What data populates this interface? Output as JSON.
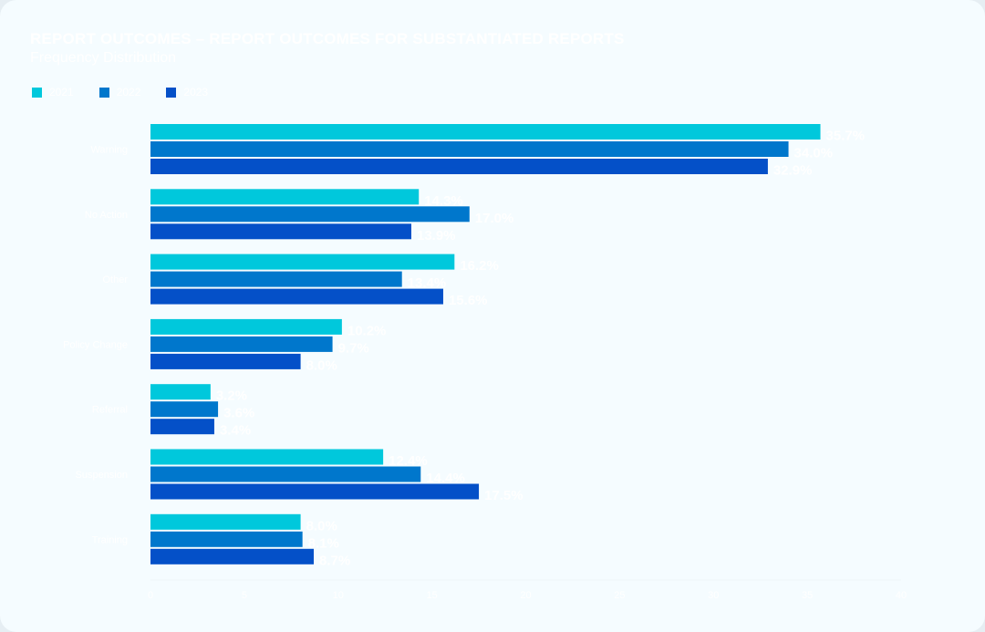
{
  "header": {
    "title": "REPORT OUTCOMES – REPORT OUTCOMES FOR SUBSTANTIATED REPORTS",
    "subtitle": "Frequency Distribution"
  },
  "colors": {
    "background": "#f5fcff",
    "series_2021": "#00c8dc",
    "series_2022": "#0077cc",
    "series_2023": "#0450c8"
  },
  "chart_data": {
    "type": "bar",
    "orientation": "horizontal",
    "title": "REPORT OUTCOMES – REPORT OUTCOMES FOR SUBSTANTIATED REPORTS",
    "subtitle": "Frequency Distribution",
    "categories": [
      "Warning",
      "No Action",
      "Other",
      "Policy Change",
      "Referral",
      "Suspension",
      "Training"
    ],
    "series": [
      {
        "name": "2021",
        "color": "#00c8dc",
        "values": [
          35.7,
          14.3,
          16.2,
          10.2,
          3.2,
          12.4,
          8.0
        ]
      },
      {
        "name": "2022",
        "color": "#0077cc",
        "values": [
          34.0,
          17.0,
          13.4,
          9.7,
          3.6,
          14.4,
          8.1
        ]
      },
      {
        "name": "2023",
        "color": "#0450c8",
        "values": [
          32.9,
          13.9,
          15.6,
          8.0,
          3.4,
          17.5,
          8.7
        ]
      }
    ],
    "xlim": [
      0,
      40
    ],
    "xticks": [
      0,
      5,
      10,
      15,
      20,
      25,
      30,
      35,
      40
    ],
    "grid": false,
    "legend_position": "top-left"
  }
}
